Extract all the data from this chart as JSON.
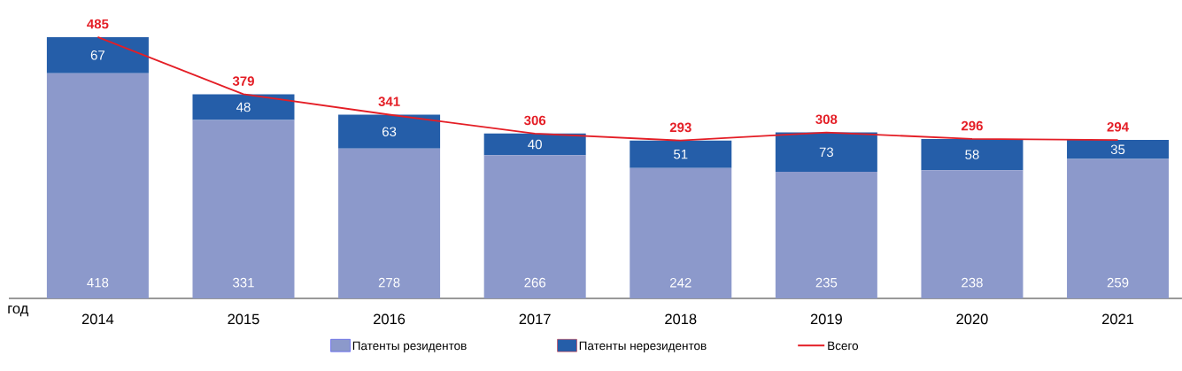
{
  "chart_data": {
    "type": "bar",
    "stacked": true,
    "xlabel": "год",
    "categories": [
      "2014",
      "2015",
      "2016",
      "2017",
      "2018",
      "2019",
      "2020",
      "2021"
    ],
    "series": [
      {
        "name": "Патенты резидентов",
        "color": "#8c99cb",
        "values": [
          418,
          331,
          278,
          266,
          242,
          235,
          238,
          259
        ]
      },
      {
        "name": "Патенты нерезидентов",
        "color": "#255ea9",
        "values": [
          67,
          48,
          63,
          40,
          51,
          73,
          58,
          35
        ]
      },
      {
        "name": "Всего",
        "type": "line",
        "color": "#e41e26",
        "values": [
          485,
          379,
          341,
          306,
          293,
          308,
          296,
          294
        ]
      }
    ],
    "data_labels": true,
    "legend": "bottom"
  }
}
